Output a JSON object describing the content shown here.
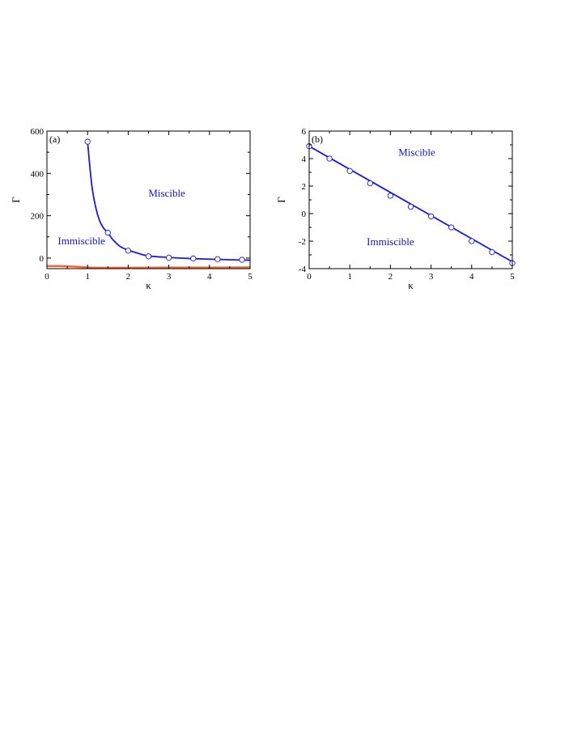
{
  "chart_data": [
    {
      "type": "line",
      "panel_label": "(a)",
      "xlabel": "κ",
      "ylabel": "Γ",
      "xlim": [
        0,
        5
      ],
      "ylim": [
        -50,
        600
      ],
      "xticks": [
        0,
        1,
        2,
        3,
        4,
        5
      ],
      "yticks": [
        0,
        200,
        400,
        600
      ],
      "grid": false,
      "annotations": [
        {
          "text": "Miscible",
          "x": 2.95,
          "y": 290
        },
        {
          "text": "Immiscible",
          "x": 0.85,
          "y": 65
        }
      ],
      "series": [
        {
          "kind": "line",
          "color": "#1a1adc",
          "x": [
            1.0,
            1.1,
            1.2,
            1.3,
            1.4,
            1.5,
            1.6,
            1.7,
            1.8,
            1.9,
            2.0,
            2.2,
            2.5,
            3.0,
            3.5,
            4.0,
            4.5,
            5.0
          ],
          "y": [
            550,
            350,
            240,
            175,
            140,
            120,
            92,
            72,
            55,
            45,
            38,
            25,
            10,
            3,
            -2,
            -5,
            -8,
            -10
          ]
        },
        {
          "kind": "markers",
          "color": "#1a1adc",
          "x": [
            1.0,
            1.5,
            2.0,
            2.5,
            3.0,
            3.6,
            4.2,
            4.8
          ],
          "y": [
            550,
            120,
            35,
            8,
            2,
            -2,
            -5,
            -8
          ]
        },
        {
          "kind": "line",
          "color": "#f06a3c",
          "x": [
            0,
            0.3,
            0.6,
            1.0,
            1.2,
            2.0,
            3.0,
            4.0,
            5.0
          ],
          "y": [
            -38,
            -38,
            -40,
            -44,
            -46,
            -46,
            -45,
            -45,
            -44
          ]
        }
      ]
    },
    {
      "type": "line",
      "panel_label": "(b)",
      "xlabel": "κ",
      "ylabel": "Γ",
      "xlim": [
        0,
        5
      ],
      "ylim": [
        -4,
        6
      ],
      "xticks": [
        0,
        1,
        2,
        3,
        4,
        5
      ],
      "yticks": [
        -4,
        -2,
        0,
        2,
        4,
        6
      ],
      "grid": false,
      "annotations": [
        {
          "text": "Miscible",
          "x": 2.65,
          "y": 4.2
        },
        {
          "text": "Immiscible",
          "x": 2.0,
          "y": -2.3
        }
      ],
      "series": [
        {
          "kind": "line",
          "color": "#1a1adc",
          "x": [
            0,
            5
          ],
          "y": [
            4.9,
            -3.5
          ]
        },
        {
          "kind": "markers",
          "color": "#1a1adc",
          "x": [
            0,
            0.5,
            1.0,
            1.5,
            2.0,
            2.5,
            3.0,
            3.5,
            4.0,
            4.5,
            5.0
          ],
          "y": [
            4.9,
            4.0,
            3.1,
            2.2,
            1.3,
            0.5,
            -0.2,
            -1.0,
            -2.0,
            -2.8,
            -3.6
          ]
        }
      ]
    }
  ]
}
